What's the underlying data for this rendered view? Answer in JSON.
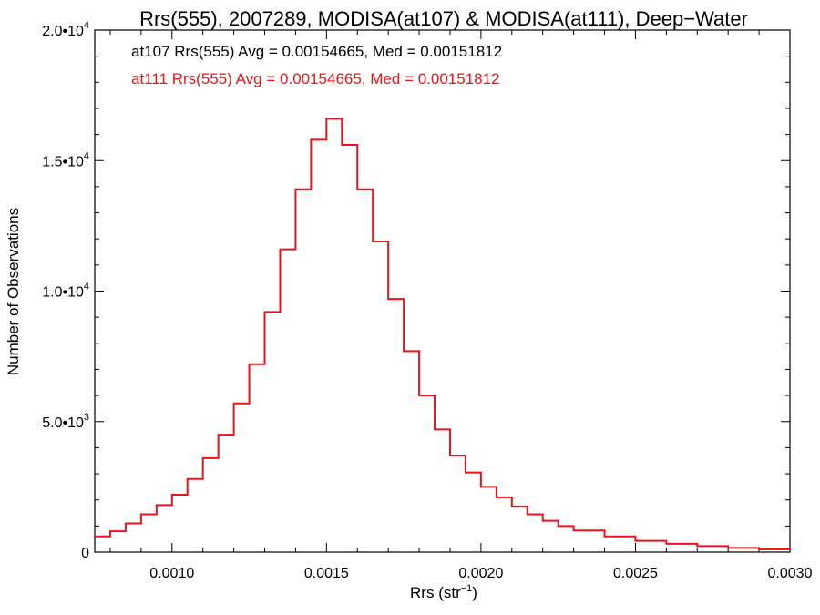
{
  "chart_data": {
    "type": "histogram",
    "title": "Rrs(555), 2007289, MODISA(at107) & MODISA(at111), Deep−Water",
    "xlabel": {
      "text": "Rrs (str",
      "sup": "−1",
      "suffix": ")"
    },
    "ylabel": "Number of Observations",
    "xlim": [
      0.00075,
      0.003
    ],
    "ylim": [
      0,
      20000
    ],
    "grid": false,
    "x_ticks": [
      {
        "value": 0.001,
        "label": "0.0010"
      },
      {
        "value": 0.0015,
        "label": "0.0015"
      },
      {
        "value": 0.002,
        "label": "0.0020"
      },
      {
        "value": 0.0025,
        "label": "0.0025"
      },
      {
        "value": 0.003,
        "label": "0.0030"
      }
    ],
    "y_ticks": [
      {
        "value": 0,
        "mantissa": "0",
        "exp": ""
      },
      {
        "value": 5000,
        "mantissa": "5.0•10",
        "exp": "3"
      },
      {
        "value": 10000,
        "mantissa": "1.0•10",
        "exp": "4"
      },
      {
        "value": 15000,
        "mantissa": "1.5•10",
        "exp": "4"
      },
      {
        "value": 20000,
        "mantissa": "2.0•10",
        "exp": "4"
      }
    ],
    "annotations": [
      {
        "text": "at107 Rrs(555) Avg = 0.00154665, Med = 0.00151812",
        "color": "#000000"
      },
      {
        "text": "at111 Rrs(555) Avg = 0.00154665, Med = 0.00151812",
        "color": "#e8141c"
      }
    ],
    "series": [
      {
        "color": "#e8141c",
        "step": "post",
        "x": [
          0.00075,
          0.0008,
          0.00085,
          0.0009,
          0.00095,
          0.001,
          0.00105,
          0.0011,
          0.00115,
          0.0012,
          0.00125,
          0.0013,
          0.00135,
          0.0014,
          0.00145,
          0.0015,
          0.00155,
          0.0016,
          0.00165,
          0.0017,
          0.00175,
          0.0018,
          0.00185,
          0.0019,
          0.00195,
          0.002,
          0.00205,
          0.0021,
          0.00215,
          0.0022,
          0.00225,
          0.0023,
          0.0024,
          0.0025,
          0.0026,
          0.0027,
          0.0028,
          0.0029,
          0.003
        ],
        "y": [
          600,
          800,
          1100,
          1450,
          1800,
          2200,
          2800,
          3600,
          4500,
          5700,
          7200,
          9200,
          11600,
          13900,
          15800,
          16600,
          15600,
          13900,
          11900,
          9700,
          7700,
          6000,
          4700,
          3700,
          3050,
          2500,
          2100,
          1750,
          1450,
          1200,
          1000,
          830,
          600,
          430,
          320,
          230,
          160,
          110,
          80
        ]
      }
    ]
  }
}
